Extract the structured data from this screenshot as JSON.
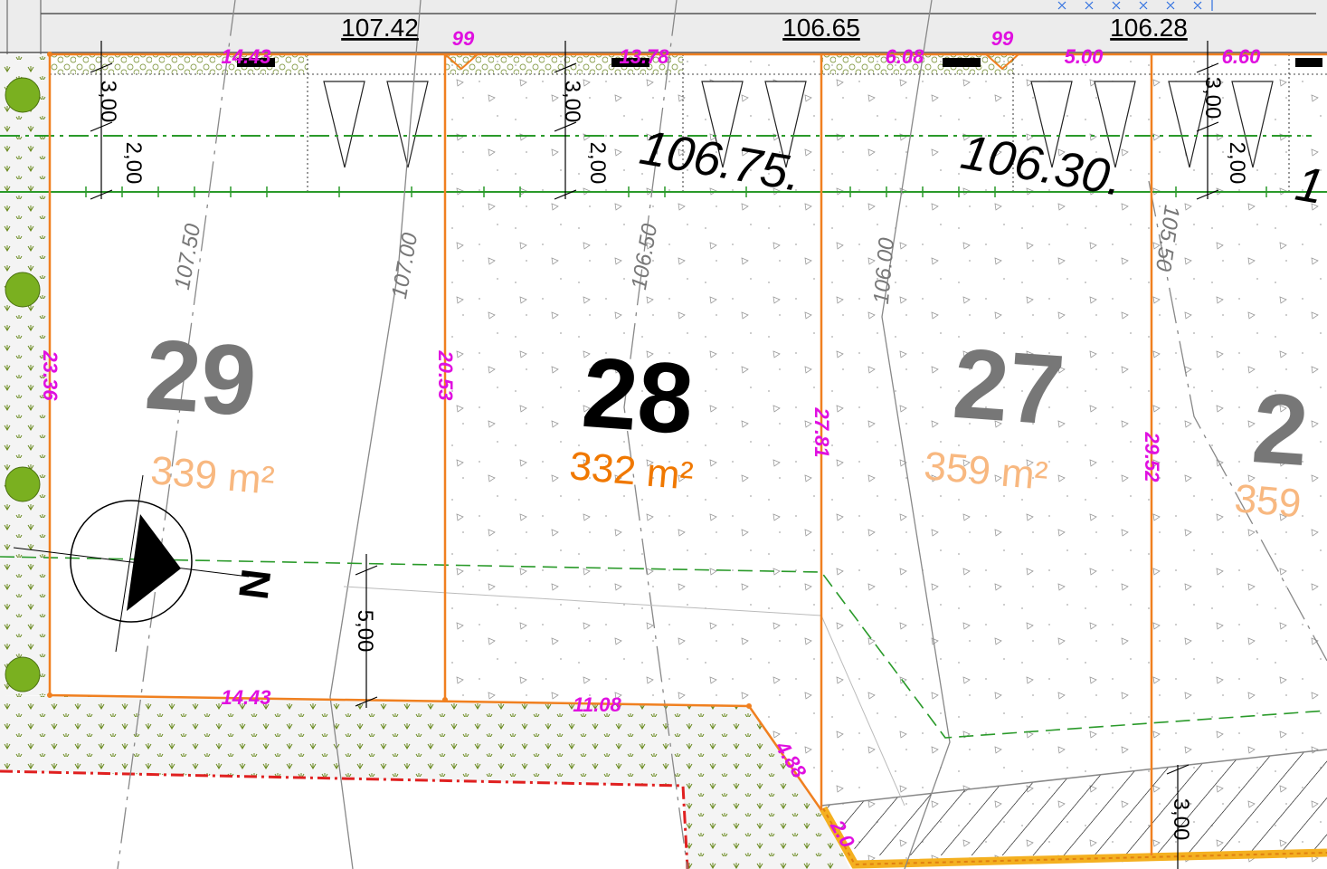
{
  "street_levels": [
    "107.42",
    "106.65",
    "106.28"
  ],
  "lots": [
    {
      "number": "29",
      "area": "339 m²"
    },
    {
      "number": "28",
      "area": "332 m²"
    },
    {
      "number": "27",
      "area": "359 m²"
    },
    {
      "number": "2",
      "area": "359"
    }
  ],
  "contour_labels": [
    "107.50",
    "107.00",
    "106.50",
    "106.00",
    "105.50"
  ],
  "spot_levels": [
    "106.75.",
    "106.30.",
    "1"
  ],
  "dimensions": [
    "3,00",
    "2,00",
    "3,00",
    "2,00",
    "3,00",
    "2,00",
    "5,00",
    "3,00"
  ],
  "boundary_lengths": [
    "14.43",
    "99",
    "13.78",
    "6.08",
    "99",
    "5.00",
    "6.60",
    "23.36",
    "20.53",
    "27.81",
    "29.52",
    "14.43",
    "11.08",
    "4.88",
    "2.0"
  ],
  "north_label": "N"
}
